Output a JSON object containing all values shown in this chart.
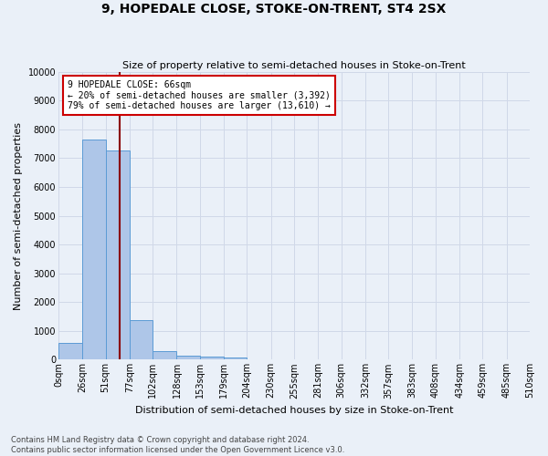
{
  "title": "9, HOPEDALE CLOSE, STOKE-ON-TRENT, ST4 2SX",
  "subtitle": "Size of property relative to semi-detached houses in Stoke-on-Trent",
  "xlabel": "Distribution of semi-detached houses by size in Stoke-on-Trent",
  "ylabel": "Number of semi-detached properties",
  "footer_line1": "Contains HM Land Registry data © Crown copyright and database right 2024.",
  "footer_line2": "Contains public sector information licensed under the Open Government Licence v3.0.",
  "property_label": "9 HOPEDALE CLOSE: 66sqm",
  "smaller_pct": 20,
  "smaller_count": 3392,
  "larger_pct": 79,
  "larger_count": 13610,
  "bin_labels": [
    "0sqm",
    "26sqm",
    "51sqm",
    "77sqm",
    "102sqm",
    "128sqm",
    "153sqm",
    "179sqm",
    "204sqm",
    "230sqm",
    "255sqm",
    "281sqm",
    "306sqm",
    "332sqm",
    "357sqm",
    "383sqm",
    "408sqm",
    "434sqm",
    "459sqm",
    "485sqm",
    "510sqm"
  ],
  "bin_edges": [
    0,
    26,
    51,
    77,
    102,
    128,
    153,
    179,
    204,
    230,
    255,
    281,
    306,
    332,
    357,
    383,
    408,
    434,
    459,
    485,
    510
  ],
  "bar_values": [
    570,
    7650,
    7250,
    1370,
    310,
    150,
    100,
    85,
    0,
    0,
    0,
    0,
    0,
    0,
    0,
    0,
    0,
    0,
    0,
    0
  ],
  "bar_color": "#aec6e8",
  "bar_edge_color": "#5b9bd5",
  "vline_x": 66,
  "vline_color": "#8b0000",
  "annotation_box_color": "#ffffff",
  "annotation_box_edge": "#cc0000",
  "grid_color": "#d0d8e8",
  "bg_color": "#eaf0f8",
  "ylim": [
    0,
    10000
  ],
  "yticks": [
    0,
    1000,
    2000,
    3000,
    4000,
    5000,
    6000,
    7000,
    8000,
    9000,
    10000
  ],
  "title_fontsize": 10,
  "subtitle_fontsize": 8,
  "ylabel_fontsize": 8,
  "xlabel_fontsize": 8,
  "tick_fontsize": 7,
  "annot_fontsize": 7
}
